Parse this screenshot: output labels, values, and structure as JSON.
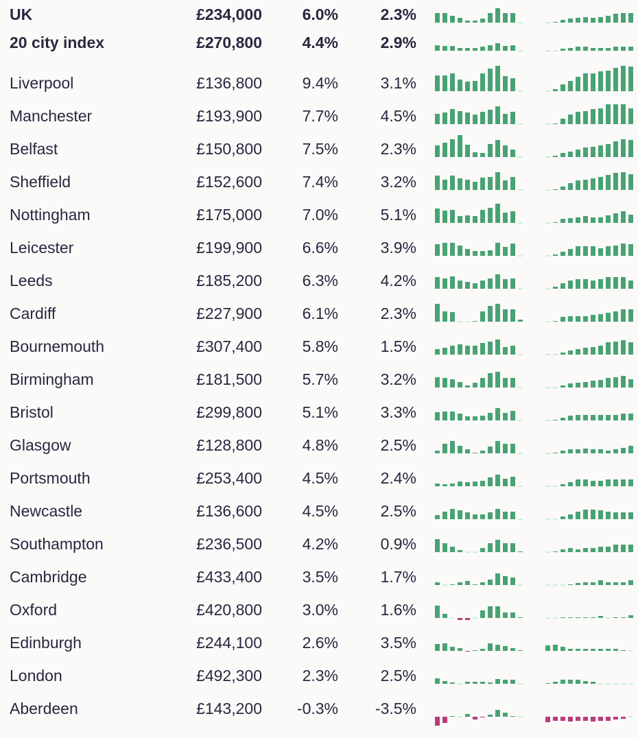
{
  "colors": {
    "positive": "#49a274",
    "negative": "#b83d7a",
    "zero_positive": "#a9e8cc",
    "zero_negative": "#f4a9d0",
    "text": "#2b2640",
    "background": "#fbfaf8"
  },
  "chart_data": {
    "type": "table",
    "sparkline_type": "bar",
    "rows": [
      {
        "name": "UK",
        "price": "£234,000",
        "change1": "6.0%",
        "change2": "2.3%",
        "bold": true,
        "spark_left": [
          14,
          14,
          10,
          7,
          3,
          3,
          6,
          14,
          21,
          14,
          14,
          0
        ],
        "spark_right": [
          0,
          1,
          4,
          6,
          7,
          8,
          7,
          8,
          10,
          13,
          14,
          14
        ]
      },
      {
        "name": "20 city index",
        "price": "£270,800",
        "change1": "4.4%",
        "change2": "2.9%",
        "bold": true,
        "spark_left": [
          8,
          7,
          7,
          4,
          4,
          4,
          6,
          8,
          11,
          7,
          8,
          0
        ],
        "spark_right": [
          0,
          0,
          3,
          4,
          6,
          6,
          4,
          4,
          4,
          6,
          6,
          6
        ]
      },
      {
        "name": "Liverpool",
        "price": "£136,800",
        "change1": "9.4%",
        "change2": "3.1%",
        "spark_left": [
          23,
          23,
          26,
          17,
          14,
          15,
          26,
          33,
          37,
          22,
          19,
          0
        ],
        "spark_right": [
          0,
          3,
          10,
          15,
          21,
          26,
          26,
          29,
          30,
          34,
          37,
          36
        ]
      },
      {
        "name": "Manchester",
        "price": "£193,900",
        "change1": "7.7%",
        "change2": "4.5%",
        "spark_left": [
          15,
          17,
          22,
          19,
          17,
          14,
          18,
          21,
          26,
          15,
          18,
          0
        ],
        "spark_right": [
          0,
          1,
          8,
          14,
          18,
          19,
          22,
          23,
          29,
          29,
          29,
          23
        ]
      },
      {
        "name": "Belfast",
        "price": "£150,800",
        "change1": "7.5%",
        "change2": "2.3%",
        "spark_left": [
          17,
          21,
          26,
          32,
          18,
          7,
          6,
          19,
          25,
          17,
          11,
          0
        ],
        "spark_right": [
          0,
          2,
          6,
          8,
          11,
          14,
          15,
          17,
          19,
          23,
          26,
          25
        ]
      },
      {
        "name": "Sheffield",
        "price": "£152,600",
        "change1": "7.4%",
        "change2": "3.2%",
        "spark_left": [
          21,
          15,
          21,
          17,
          15,
          12,
          18,
          19,
          26,
          14,
          19,
          0
        ],
        "spark_right": [
          0,
          1,
          5,
          10,
          14,
          15,
          17,
          19,
          22,
          25,
          26,
          23
        ]
      },
      {
        "name": "Nottingham",
        "price": "£175,000",
        "change1": "7.0%",
        "change2": "5.1%",
        "spark_left": [
          21,
          18,
          19,
          10,
          11,
          10,
          19,
          22,
          28,
          15,
          17,
          0
        ],
        "spark_right": [
          0,
          1,
          6,
          7,
          8,
          10,
          8,
          8,
          11,
          14,
          17,
          12
        ]
      },
      {
        "name": "Leicester",
        "price": "£199,900",
        "change1": "6.6%",
        "change2": "3.9%",
        "spark_left": [
          17,
          19,
          19,
          15,
          10,
          7,
          7,
          8,
          19,
          13,
          18,
          0
        ],
        "spark_right": [
          0,
          2,
          6,
          10,
          14,
          14,
          14,
          11,
          14,
          15,
          18,
          17
        ]
      },
      {
        "name": "Leeds",
        "price": "£185,200",
        "change1": "6.3%",
        "change2": "4.2%",
        "spark_left": [
          17,
          15,
          18,
          12,
          10,
          8,
          12,
          15,
          21,
          14,
          15,
          0
        ],
        "spark_right": [
          0,
          3,
          8,
          12,
          14,
          14,
          12,
          14,
          17,
          17,
          17,
          12
        ]
      },
      {
        "name": "Cardiff",
        "price": "£227,900",
        "change1": "6.1%",
        "change2": "2.3%",
        "spark_left": [
          26,
          15,
          14,
          0,
          0,
          1,
          15,
          23,
          26,
          18,
          18,
          3
        ],
        "spark_right": [
          0,
          1,
          7,
          8,
          8,
          8,
          10,
          11,
          13,
          15,
          18,
          18
        ]
      },
      {
        "name": "Bournemouth",
        "price": "£307,400",
        "change1": "5.8%",
        "change2": "1.5%",
        "spark_left": [
          8,
          10,
          13,
          15,
          13,
          13,
          17,
          19,
          22,
          11,
          13,
          0
        ],
        "spark_right": [
          0,
          0,
          3,
          6,
          8,
          10,
          11,
          13,
          18,
          19,
          21,
          18
        ]
      },
      {
        "name": "Birmingham",
        "price": "£181,500",
        "change1": "5.7%",
        "change2": "3.2%",
        "spark_left": [
          15,
          14,
          12,
          8,
          3,
          7,
          14,
          21,
          23,
          14,
          14,
          0
        ],
        "spark_right": [
          0,
          0,
          3,
          6,
          7,
          8,
          10,
          11,
          14,
          15,
          17,
          12
        ]
      },
      {
        "name": "Bristol",
        "price": "£299,800",
        "change1": "5.1%",
        "change2": "3.3%",
        "spark_left": [
          12,
          13,
          13,
          10,
          6,
          6,
          7,
          11,
          18,
          11,
          14,
          0
        ],
        "spark_right": [
          0,
          1,
          4,
          7,
          8,
          8,
          8,
          8,
          8,
          8,
          10,
          10
        ]
      },
      {
        "name": "Glasgow",
        "price": "£128,800",
        "change1": "4.8%",
        "change2": "2.5%",
        "spark_left": [
          4,
          14,
          18,
          11,
          6,
          1,
          4,
          10,
          18,
          14,
          14,
          0
        ],
        "spark_right": [
          0,
          1,
          4,
          6,
          6,
          7,
          6,
          6,
          4,
          6,
          8,
          11
        ]
      },
      {
        "name": "Portsmouth",
        "price": "£253,400",
        "change1": "4.5%",
        "change2": "2.4%",
        "spark_left": [
          4,
          3,
          4,
          7,
          6,
          7,
          8,
          13,
          17,
          11,
          14,
          0
        ],
        "spark_right": [
          0,
          0,
          3,
          6,
          10,
          10,
          8,
          8,
          10,
          10,
          10,
          10
        ]
      },
      {
        "name": "Newcastle",
        "price": "£136,600",
        "change1": "4.5%",
        "change2": "2.5%",
        "spark_left": [
          6,
          11,
          15,
          13,
          10,
          7,
          7,
          10,
          15,
          11,
          11,
          0
        ],
        "spark_right": [
          0,
          0,
          4,
          7,
          11,
          14,
          14,
          13,
          11,
          10,
          10,
          10
        ]
      },
      {
        "name": "Southampton",
        "price": "£236,500",
        "change1": "4.2%",
        "change2": "0.9%",
        "spark_left": [
          19,
          13,
          8,
          3,
          0,
          0,
          6,
          13,
          18,
          13,
          13,
          1
        ],
        "spark_right": [
          0,
          1,
          4,
          6,
          4,
          6,
          6,
          8,
          8,
          11,
          11,
          11
        ]
      },
      {
        "name": "Cambridge",
        "price": "£433,400",
        "change1": "3.5%",
        "change2": "1.7%",
        "spark_left": [
          4,
          0,
          1,
          4,
          6,
          1,
          4,
          8,
          17,
          13,
          11,
          0
        ],
        "spark_right": [
          0,
          0,
          0,
          1,
          3,
          4,
          4,
          7,
          4,
          4,
          4,
          7
        ]
      },
      {
        "name": "Oxford",
        "price": "£420,800",
        "change1": "3.0%",
        "change2": "1.6%",
        "spark_left": [
          18,
          6,
          0,
          -3,
          -3,
          0,
          11,
          17,
          17,
          8,
          8,
          1
        ],
        "spark_right": [
          0,
          0,
          1,
          1,
          1,
          1,
          1,
          3,
          0,
          1,
          1,
          4
        ]
      },
      {
        "name": "Edinburgh",
        "price": "£244,100",
        "change1": "2.6%",
        "change2": "3.5%",
        "spark_left": [
          10,
          11,
          6,
          4,
          -1,
          1,
          3,
          11,
          9,
          7,
          4,
          1
        ],
        "spark_right": [
          8,
          9,
          6,
          3,
          3,
          3,
          3,
          3,
          3,
          3,
          1,
          0
        ]
      },
      {
        "name": "London",
        "price": "£492,300",
        "change1": "2.3%",
        "change2": "2.5%",
        "spark_left": [
          8,
          4,
          2,
          0,
          3,
          3,
          3,
          2,
          7,
          6,
          6,
          0
        ],
        "spark_right": [
          1,
          3,
          6,
          6,
          6,
          4,
          3,
          0,
          0,
          0,
          0,
          0
        ]
      },
      {
        "name": "Aberdeen",
        "price": "£143,200",
        "change1": "-0.3%",
        "change2": "-3.5%",
        "spark_left": [
          -13,
          -9,
          1,
          0,
          4,
          -4,
          -1,
          3,
          10,
          6,
          1,
          0
        ],
        "spark_right": [
          -8,
          -6,
          -6,
          -7,
          -6,
          -6,
          -7,
          -6,
          -6,
          -4,
          -3,
          0
        ]
      }
    ]
  }
}
